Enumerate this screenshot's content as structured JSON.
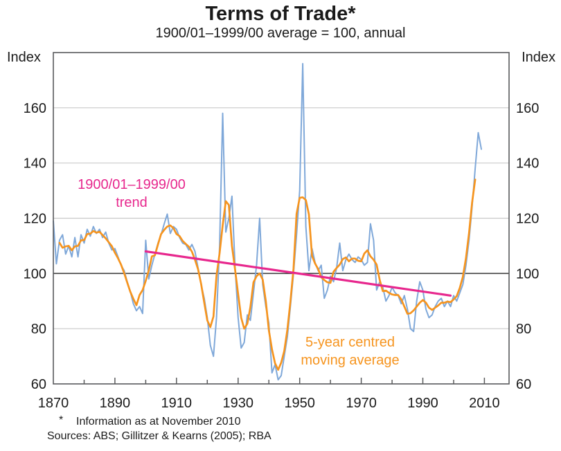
{
  "title": "Terms of Trade*",
  "subtitle": "1900/01–1999/00 average = 100, annual",
  "axes": {
    "y_unit_label": "Index",
    "y_ticks": [
      60,
      80,
      100,
      120,
      140,
      160
    ],
    "y_gridlines": [
      80,
      120,
      140,
      160
    ],
    "reference_line": 100,
    "x_tick_labels": [
      1870,
      1890,
      1910,
      1930,
      1950,
      1970,
      1990,
      2010
    ],
    "x_minor_tick_step": 10
  },
  "annotations": {
    "trend": {
      "line1": "1900/01–1999/00",
      "line2": "trend"
    },
    "ma": {
      "line1": "5-year centred",
      "line2": "moving average"
    }
  },
  "footnotes": {
    "marker": "*",
    "note": "Information as at November 2010",
    "sources": "Sources: ABS; Gillitzer & Kearns (2005); RBA"
  },
  "colors": {
    "annual_line": "#7fa8d9",
    "moving_average_line": "#f6941e",
    "trend_line": "#e7278d",
    "trend_label": "#e7278d",
    "ma_label": "#f6941e",
    "grid": "#c9c9c9",
    "reference": "#3f3f3f",
    "frame": "#58595b",
    "text": "#1a1a1a"
  },
  "chart_data": {
    "type": "line",
    "title": "Terms of Trade*",
    "subtitle": "1900/01–1999/00 average = 100, annual",
    "xlabel": "",
    "ylabel": "Index",
    "ylim": [
      60,
      180
    ],
    "xlim": [
      1870,
      2018
    ],
    "grid": "horizontal",
    "legend_position": "in-plot text labels",
    "series": [
      {
        "name": "Terms of trade (annual)",
        "color": "#7fa8d9",
        "x_start": 1870,
        "x_step": 1,
        "values": [
          119,
          103.5,
          112,
          114,
          107,
          110,
          106,
          113,
          106,
          114,
          111,
          116,
          113.5,
          117,
          114.5,
          116,
          113,
          115,
          111,
          108.5,
          109,
          106,
          103,
          101,
          97,
          93.5,
          89,
          86.5,
          88,
          85.5,
          112,
          98,
          103,
          107,
          111,
          114,
          118,
          121.5,
          114.5,
          117,
          116,
          113,
          111,
          110.5,
          108.5,
          110.5,
          108,
          102,
          96,
          91,
          84,
          74,
          70,
          84,
          110,
          158,
          115,
          120,
          128,
          103,
          84,
          73,
          75,
          85,
          83,
          93,
          103,
          120,
          96,
          88,
          82,
          64,
          67,
          61.5,
          63,
          70,
          77,
          88,
          100,
          114,
          130,
          176,
          117,
          101,
          109,
          104,
          101,
          103,
          91,
          94,
          99,
          97,
          102,
          111,
          101,
          105,
          107,
          105,
          104,
          106,
          105,
          103,
          104,
          118,
          112,
          94,
          97,
          95,
          90,
          92,
          95,
          93,
          92,
          89,
          92,
          87,
          80,
          79,
          90,
          97,
          94,
          87,
          84,
          85,
          88,
          90,
          91,
          88,
          90,
          88,
          92,
          90,
          93,
          96,
          103,
          112,
          124,
          138,
          151,
          145
        ]
      },
      {
        "name": "5-year centred moving average",
        "color": "#f6941e",
        "derived_from": "Terms of trade (annual)",
        "window": 5
      },
      {
        "name": "1900/01–1999/00 trend",
        "color": "#e7278d",
        "x": [
          1900,
          1999
        ],
        "values": [
          108,
          92
        ]
      }
    ]
  }
}
